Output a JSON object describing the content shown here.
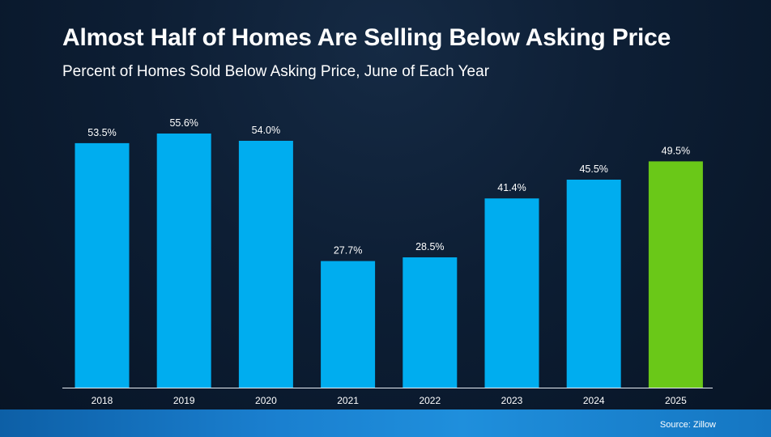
{
  "header": {
    "title": "Almost Half of Homes Are Selling Below Asking Price",
    "subtitle": "Percent of Homes Sold Below Asking Price, June of Each Year"
  },
  "footer": {
    "source": "Source: Zillow"
  },
  "colors": {
    "bar": "#00adef",
    "highlight_bar": "#6ac818",
    "text": "#ffffff",
    "axis": "#e8eef5"
  },
  "chart_data": {
    "type": "bar",
    "title": "Almost Half of Homes Are Selling Below Asking Price",
    "subtitle": "Percent of Homes Sold Below Asking Price, June of Each Year",
    "categories": [
      "2018",
      "2019",
      "2020",
      "2021",
      "2022",
      "2023",
      "2024",
      "2025"
    ],
    "values": [
      53.5,
      55.6,
      54.0,
      27.7,
      28.5,
      41.4,
      45.5,
      49.5
    ],
    "labels": [
      "53.5%",
      "55.6%",
      "54.0%",
      "27.7%",
      "28.5%",
      "41.4%",
      "45.5%",
      "49.5%"
    ],
    "highlight": "2025",
    "xlabel": "",
    "ylabel": "",
    "ylim": [
      0,
      55.6
    ],
    "grid": false,
    "legend": "none"
  }
}
